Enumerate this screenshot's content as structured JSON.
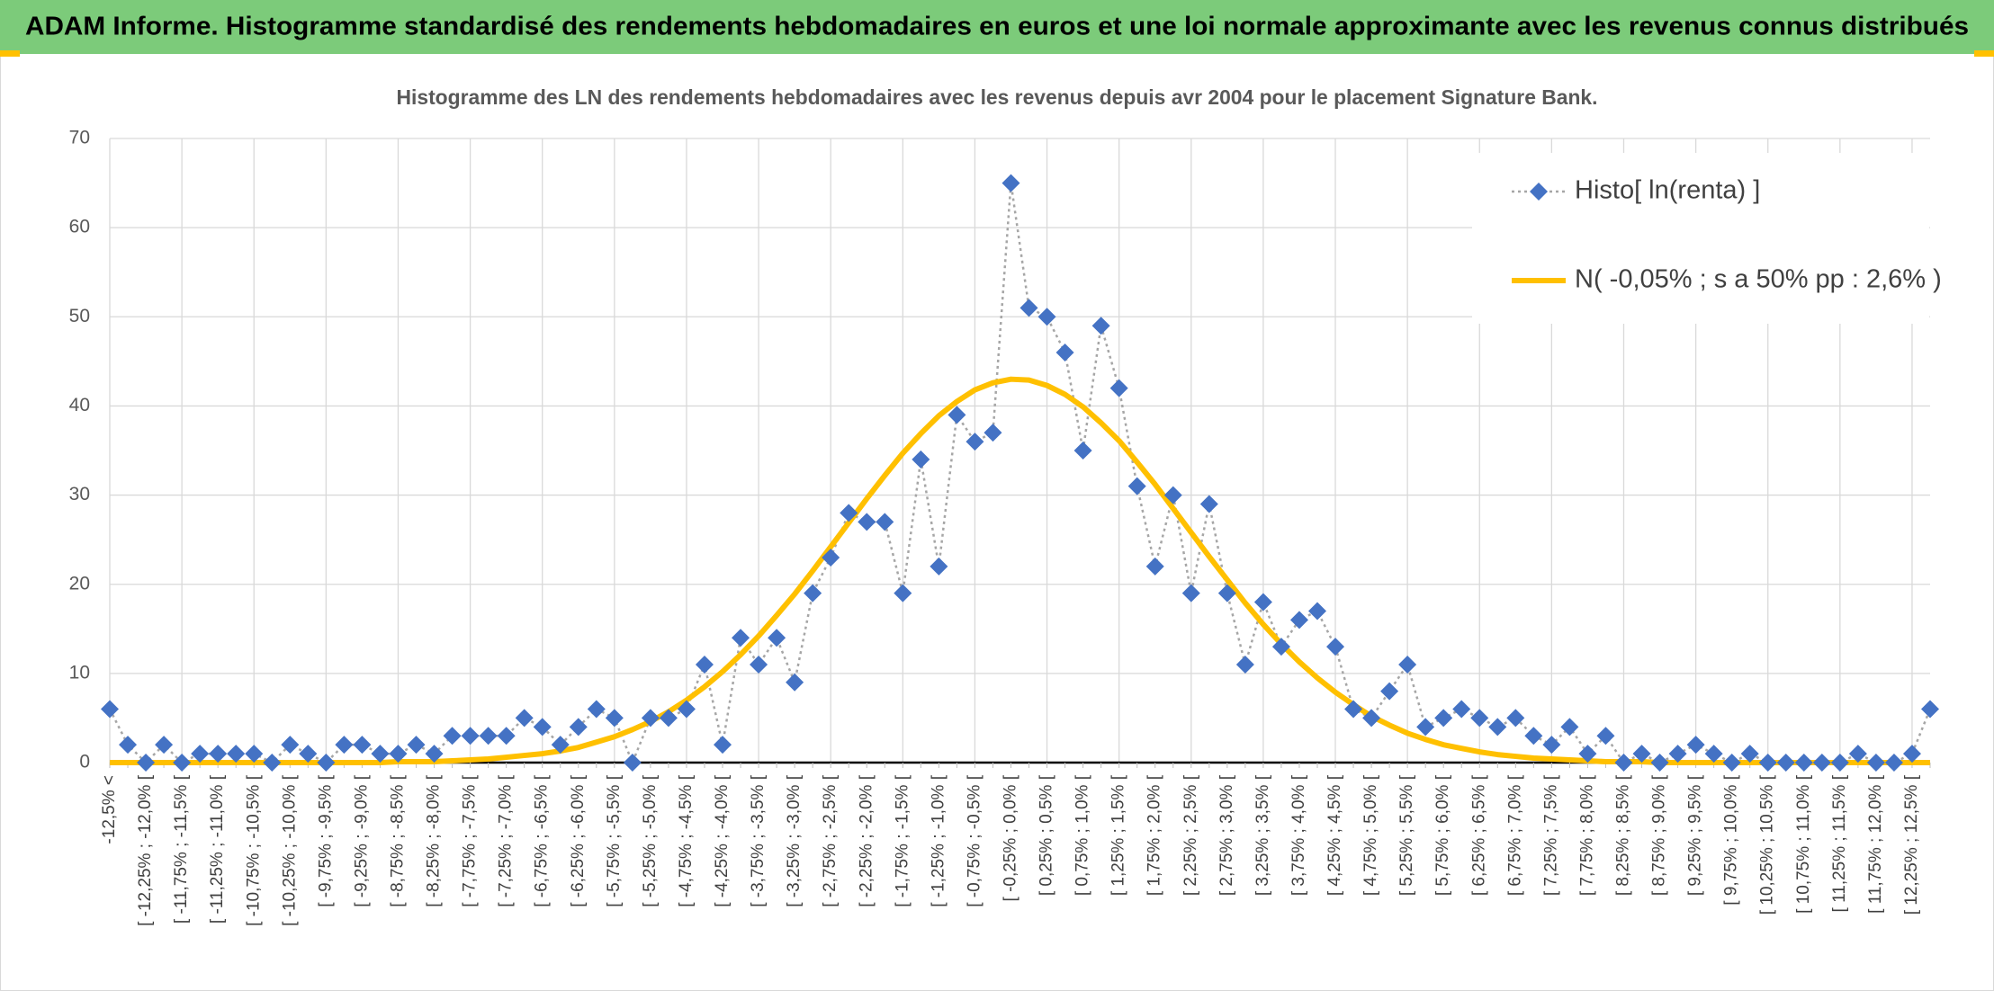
{
  "chart_data": {
    "type": "line",
    "title": "ADAM Informe. Histogramme standardisé des rendements hebdomadaires en euros et une loi normale approximante avec les revenus connus distribués",
    "subtitle": "Histogramme des LN des rendements hebdomadaires avec les revenus depuis avr 2004 pour le placement Signature Bank.",
    "categories": [
      "-12,5% <",
      null,
      "[ -12,25% ; -12,0% [",
      null,
      "[ -11,75% ; -11,5% [",
      null,
      "[ -11,25% ; -11,0% [",
      null,
      "[ -10,75% ; -10,5% [",
      null,
      "[ -10,25% ; -10,0% [",
      null,
      "[ -9,75% ; -9,5% [",
      null,
      "[ -9,25% ; -9,0% [",
      null,
      "[ -8,75% ; -8,5% [",
      null,
      "[ -8,25% ; -8,0% [",
      null,
      "[ -7,75% ; -7,5% [",
      null,
      "[ -7,25% ; -7,0% [",
      null,
      "[ -6,75% ; -6,5% [",
      null,
      "[ -6,25% ; -6,0% [",
      null,
      "[ -5,75% ; -5,5% [",
      null,
      "[ -5,25% ; -5,0% [",
      null,
      "[ -4,75% ; -4,5% [",
      null,
      "[ -4,25% ; -4,0% [",
      null,
      "[ -3,75% ; -3,5% [",
      null,
      "[ -3,25% ; -3,0% [",
      null,
      "[ -2,75% ; -2,5% [",
      null,
      "[ -2,25% ; -2,0% [",
      null,
      "[ -1,75% ; -1,5% [",
      null,
      "[ -1,25% ; -1,0% [",
      null,
      "[ -0,75% ; -0,5% [",
      null,
      "[ -0,25% ; 0,0% [",
      null,
      "[ 0,25% ; 0,5% [",
      null,
      "[ 0,75% ; 1,0% [",
      null,
      "[ 1,25% ; 1,5% [",
      null,
      "[ 1,75% ; 2,0% [",
      null,
      "[ 2,25% ; 2,5% [",
      null,
      "[ 2,75% ; 3,0% [",
      null,
      "[ 3,25% ; 3,5% [",
      null,
      "[ 3,75% ; 4,0% [",
      null,
      "[ 4,25% ; 4,5% [",
      null,
      "[ 4,75% ; 5,0% [",
      null,
      "[ 5,25% ; 5,5% [",
      null,
      "[ 5,75% ; 6,0% [",
      null,
      "[ 6,25% ; 6,5% [",
      null,
      "[ 6,75% ; 7,0% [",
      null,
      "[ 7,25% ; 7,5% [",
      null,
      "[ 7,75% ; 8,0% [",
      null,
      "[ 8,25% ; 8,5% [",
      null,
      "[ 8,75% ; 9,0% [",
      null,
      "[ 9,25% ; 9,5% [",
      null,
      "[ 9,75% ; 10,0% [",
      null,
      "[ 10,25% ; 10,5% [",
      null,
      "[ 10,75% ; 11,0% [",
      null,
      "[ 11,25% ; 11,5% [",
      null,
      "[ 11,75% ; 12,0% [",
      null,
      "[ 12,25% ; 12,5% [",
      null
    ],
    "series": [
      {
        "name": "Histo[ ln(renta) ]",
        "color": "#4472c4",
        "line_color": "#a6a6a6",
        "marker": "diamond",
        "values": [
          6,
          2,
          0,
          2,
          0,
          1,
          1,
          1,
          1,
          0,
          2,
          1,
          0,
          2,
          2,
          1,
          1,
          2,
          1,
          3,
          3,
          3,
          3,
          5,
          4,
          2,
          4,
          6,
          5,
          0,
          5,
          5,
          6,
          11,
          2,
          14,
          11,
          14,
          9,
          19,
          23,
          28,
          27,
          27,
          19,
          34,
          22,
          39,
          36,
          37,
          65,
          51,
          50,
          46,
          35,
          49,
          42,
          31,
          22,
          30,
          19,
          29,
          19,
          11,
          18,
          13,
          16,
          17,
          13,
          6,
          5,
          8,
          11,
          4,
          5,
          6,
          5,
          4,
          5,
          3,
          2,
          4,
          1,
          3,
          0,
          1,
          0,
          1,
          2,
          1,
          0,
          1,
          0,
          0,
          0,
          0,
          0,
          1,
          0,
          0,
          1,
          6
        ]
      },
      {
        "name": "N( -0,05% ; s a 50% pp : 2,6% )",
        "color": "#ffc000",
        "values": [
          0,
          0,
          0,
          0,
          0,
          0,
          0,
          0,
          0,
          0,
          0,
          0,
          0,
          0,
          0,
          0,
          0.1,
          0.1,
          0.1,
          0.2,
          0.3,
          0.4,
          0.6,
          0.8,
          1.0,
          1.3,
          1.7,
          2.3,
          2.9,
          3.7,
          4.6,
          5.7,
          7.0,
          8.5,
          10.2,
          12.1,
          14.2,
          16.5,
          18.9,
          21.5,
          24.2,
          26.9,
          29.6,
          32.2,
          34.7,
          36.9,
          38.9,
          40.5,
          41.8,
          42.6,
          43.0,
          42.9,
          42.3,
          41.3,
          39.9,
          38.1,
          36.1,
          33.7,
          31.2,
          28.5,
          25.8,
          23.1,
          20.5,
          17.9,
          15.5,
          13.3,
          11.3,
          9.5,
          7.9,
          6.5,
          5.2,
          4.2,
          3.3,
          2.6,
          2.0,
          1.6,
          1.2,
          0.9,
          0.7,
          0.5,
          0.4,
          0.3,
          0.2,
          0.1,
          0.1,
          0.1,
          0,
          0,
          0,
          0,
          0,
          0,
          0,
          0,
          0,
          0,
          0,
          0,
          0,
          0,
          0,
          0
        ]
      }
    ],
    "ylim": [
      0,
      70
    ],
    "yticks": [
      0,
      10,
      20,
      30,
      40,
      50,
      60,
      70
    ],
    "grid": true,
    "legend": "top-right"
  }
}
